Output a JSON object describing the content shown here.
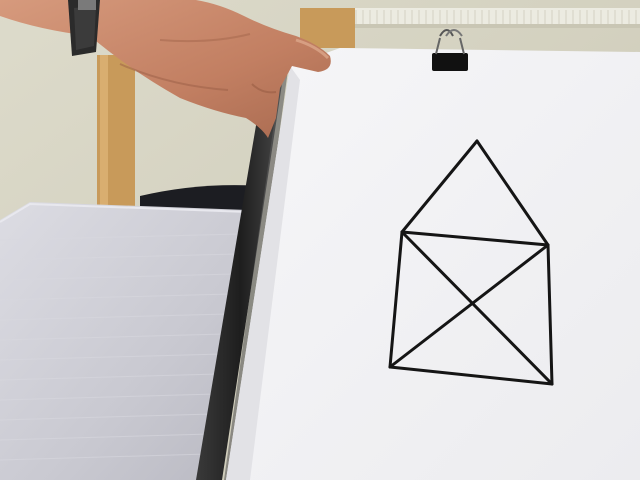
{
  "scene": {
    "kind": "photo",
    "colors": {
      "wall": "#dcdac9",
      "wall_shadow": "#c9c6b4",
      "radiator": "#ecebe1",
      "chair_wood": "#c89a5a",
      "chair_seat": "#1c1d22",
      "desk": "#cfd0d6",
      "desk_light": "#e3e4e9",
      "board_edge": "#2a2a2a",
      "paper": "#f4f4f6",
      "paper_shadow": "#e2e2e6",
      "skin": "#c7876a",
      "skin_shadow": "#9a5e45",
      "watch_strap": "#2b2b2b",
      "clip": "#111111",
      "ink": "#151515"
    },
    "drawing": {
      "subject": "house-of-nicolaus",
      "segments": 8
    },
    "objects": [
      "wall",
      "radiator",
      "chair",
      "desk-paper-stack",
      "clipboard",
      "paper-sheet",
      "binder-clip",
      "hand",
      "wristwatch",
      "house-figure-drawing"
    ]
  }
}
